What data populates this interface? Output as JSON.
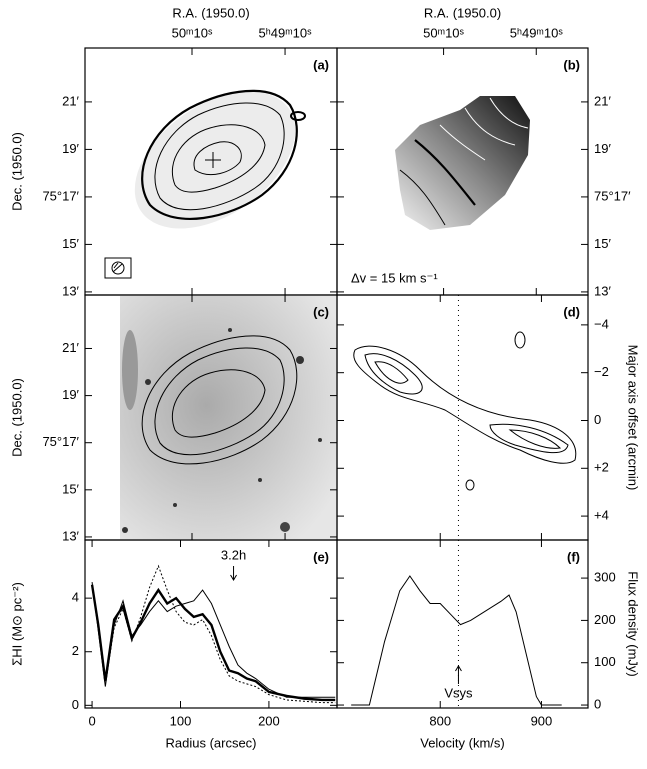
{
  "chart_data": [
    {
      "type": "image",
      "label": "(a)",
      "x_label": "R.A. (1950.0)",
      "y_label": "Dec. (1950.0)",
      "xlim": [
        3079,
        2916.5
      ],
      "xticks": [
        {
          "value": 3010,
          "label": "50ᵐ10ˢ"
        },
        {
          "value": 2950,
          "label": "5ʰ49ᵐ10ˢ"
        }
      ],
      "ylim": [
        12.87,
        23.27
      ],
      "yticks": [
        {
          "value": 13,
          "label": "13′"
        },
        {
          "value": 15,
          "label": "15′"
        },
        {
          "value": 17,
          "label": "75°17′"
        },
        {
          "value": 19,
          "label": "19′"
        },
        {
          "value": 21,
          "label": "21′"
        }
      ]
    },
    {
      "type": "image",
      "label": "(b)",
      "x_label": "R.A. (1950.0)",
      "annotation": "Δv = 15 km s⁻¹",
      "xlim": [
        3079,
        2916.5
      ],
      "xticks": [
        {
          "value": 3010,
          "label": "50ᵐ10ˢ"
        },
        {
          "value": 2950,
          "label": "5ʰ49ᵐ10ˢ"
        }
      ],
      "ylim": [
        12.87,
        23.27
      ],
      "yticks": [
        {
          "value": 13,
          "label": "13′"
        },
        {
          "value": 15,
          "label": "15′"
        },
        {
          "value": 17,
          "label": "75°17′"
        },
        {
          "value": 19,
          "label": "19′"
        },
        {
          "value": 21,
          "label": "21′"
        }
      ]
    },
    {
      "type": "image",
      "label": "(c)",
      "y_label": "Dec. (1950.0)",
      "xlim": [
        3079,
        2916.5
      ],
      "xticks": [
        {
          "value": 3010,
          "label": "50ᵐ10ˢ"
        },
        {
          "value": 2950,
          "label": "5ʰ49ᵐ10ˢ"
        }
      ],
      "ylim": [
        12.87,
        23.27
      ],
      "yticks": [
        {
          "value": 13,
          "label": "13′"
        },
        {
          "value": 15,
          "label": "15′"
        },
        {
          "value": 17,
          "label": "75°17′"
        },
        {
          "value": 19,
          "label": "19′"
        },
        {
          "value": 21,
          "label": "21′"
        }
      ]
    },
    {
      "type": "image",
      "label": "(d)",
      "y_label": "Major axis offset (arcmin)",
      "xlim": [
        698,
        946
      ],
      "xticks": [
        800,
        900
      ],
      "ylim": [
        5.0,
        -5.25
      ],
      "yticks": [
        {
          "value": -4,
          "label": "−4"
        },
        {
          "value": -2,
          "label": "−2"
        },
        0,
        {
          "value": 2,
          "label": "+2"
        },
        {
          "value": 4,
          "label": "+4"
        }
      ]
    },
    {
      "type": "line",
      "label": "(e)",
      "x_label": "Radius (arcsec)",
      "y_label": "ΣHI (M⊙ pc⁻²)",
      "annotation": "3.2h",
      "annotation_x": 160,
      "xlim": [
        -8,
        277
      ],
      "xticks": [
        0,
        100,
        200
      ],
      "ylim": [
        -0.1,
        6.17
      ],
      "yticks": [
        0,
        2,
        4
      ],
      "x": [
        0,
        7,
        15,
        25,
        35,
        45,
        55,
        65,
        75,
        85,
        95,
        105,
        115,
        125,
        135,
        145,
        155,
        165,
        175,
        185,
        200,
        220,
        240,
        260,
        275
      ],
      "series": [
        {
          "color": "#000000",
          "style": "thick",
          "values": [
            4.5,
            3.0,
            0.9,
            3.2,
            3.7,
            2.5,
            3.1,
            3.8,
            4.3,
            3.8,
            4.0,
            3.6,
            3.3,
            3.4,
            3.0,
            2.0,
            1.3,
            1.2,
            1.0,
            0.9,
            0.5,
            0.35,
            0.25,
            0.2,
            0.2
          ]
        },
        {
          "color": "#000000",
          "style": "thin",
          "values": [
            4.6,
            2.8,
            0.7,
            3.0,
            3.9,
            2.6,
            3.0,
            3.5,
            3.9,
            3.5,
            3.7,
            3.8,
            3.9,
            4.3,
            3.8,
            3.0,
            2.2,
            1.5,
            1.2,
            1.0,
            0.6,
            0.3,
            0.3,
            0.3,
            0.3
          ]
        },
        {
          "color": "#000000",
          "style": "dotted",
          "values": [
            4.4,
            2.9,
            0.8,
            2.9,
            3.6,
            2.4,
            3.3,
            4.4,
            5.2,
            4.3,
            3.5,
            3.1,
            3.0,
            3.2,
            2.6,
            1.7,
            1.1,
            0.9,
            0.8,
            0.7,
            0.4,
            0.2,
            0.15,
            0.1,
            0.1
          ]
        }
      ]
    },
    {
      "type": "line",
      "label": "(f)",
      "x_label": "Velocity (km/s)",
      "y_label": "Flux density (mJy)",
      "annotation": "Vsys",
      "vsys": 818,
      "xlim": [
        698,
        946
      ],
      "xticks": [
        800,
        900
      ],
      "ylim": [
        -7,
        390
      ],
      "yticks": [
        0,
        100,
        200,
        300
      ],
      "x": [
        712,
        730,
        745,
        760,
        770,
        780,
        790,
        800,
        810,
        820,
        830,
        840,
        850,
        860,
        868,
        875,
        885,
        895,
        900,
        920
      ],
      "series": [
        {
          "color": "#000000",
          "style": "thin",
          "values": [
            0,
            0,
            150,
            270,
            305,
            270,
            240,
            240,
            215,
            190,
            200,
            215,
            230,
            245,
            260,
            220,
            120,
            20,
            0,
            0
          ]
        }
      ]
    }
  ]
}
